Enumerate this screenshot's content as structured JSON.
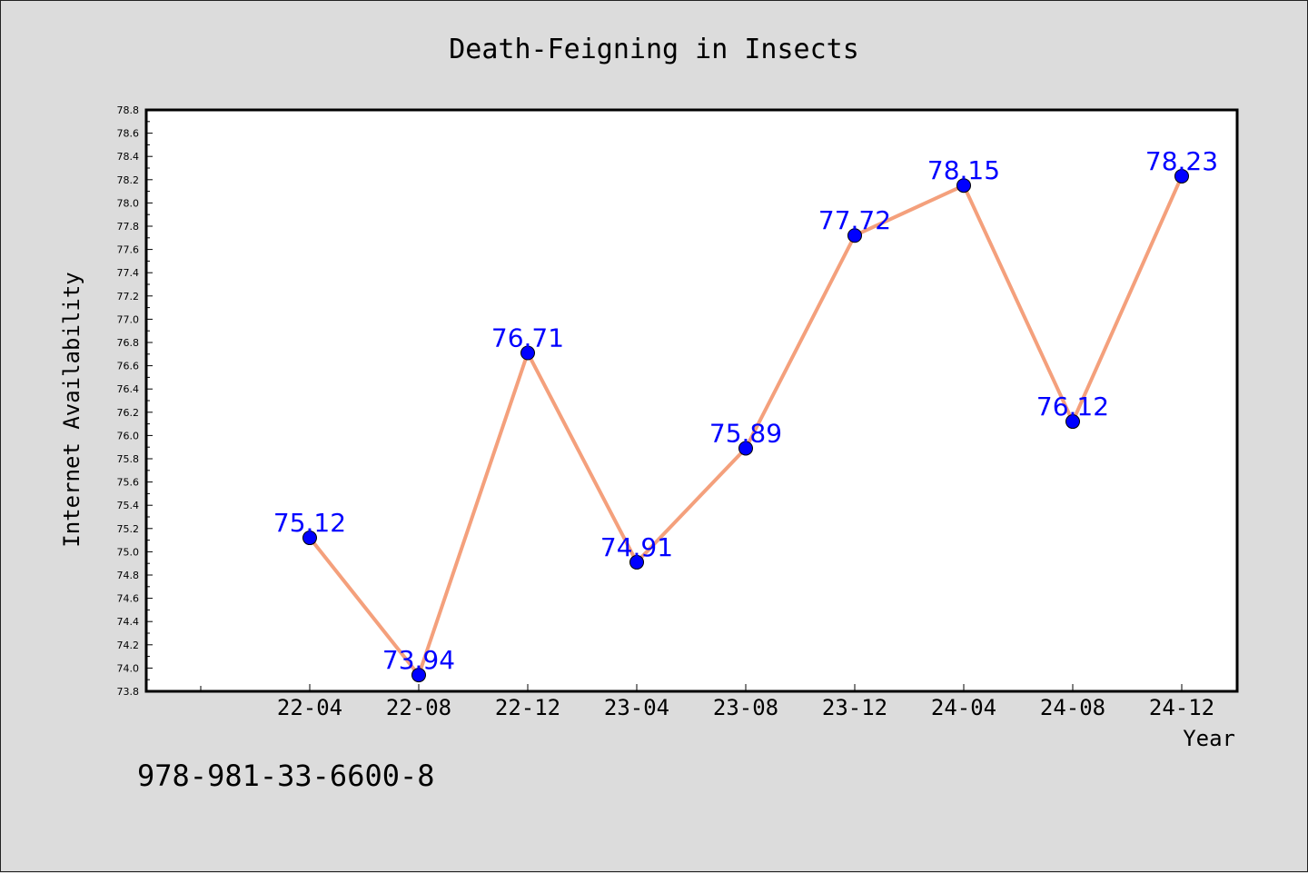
{
  "chart_data": {
    "type": "line",
    "title": "Death-Feigning in Insects",
    "xlabel": "Year",
    "ylabel": "Internet Availability",
    "categories": [
      "22-04",
      "22-08",
      "22-12",
      "23-04",
      "23-08",
      "23-12",
      "24-04",
      "24-08",
      "24-12"
    ],
    "series": [
      {
        "values": [
          75.12,
          73.94,
          76.71,
          74.91,
          75.89,
          77.72,
          78.15,
          76.12,
          78.23
        ],
        "labels": [
          "75.12",
          "73.94",
          "76.71",
          "74.91",
          "75.89",
          "77.72",
          "78.15",
          "76.12",
          "78.23"
        ]
      }
    ],
    "ylim": [
      73.8,
      78.8
    ],
    "yticks": [
      "73.8",
      "74.0",
      "74.2",
      "74.4",
      "74.6",
      "74.8",
      "75.0",
      "75.2",
      "75.4",
      "75.6",
      "75.8",
      "76.0",
      "76.2",
      "76.4",
      "76.6",
      "76.8",
      "77.0",
      "77.2",
      "77.4",
      "77.6",
      "77.8",
      "78.0",
      "78.2",
      "78.4",
      "78.6",
      "78.8"
    ],
    "grid": false,
    "colors": {
      "line": "#f4a07c",
      "marker": "#0000ff",
      "label": "#0000ff",
      "text": "#000000",
      "plot_bg": "#ffffff",
      "page_bg": "#dcdcdc"
    }
  },
  "annotation": "978-981-33-6600-8"
}
